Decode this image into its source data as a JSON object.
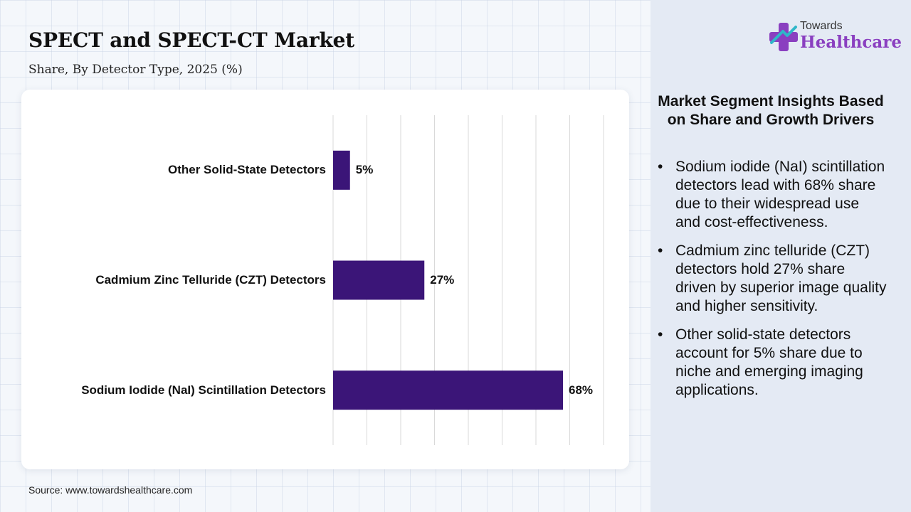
{
  "header": {
    "title": "SPECT and SPECT-CT Market",
    "subtitle": "Share, By Detector Type, 2025 (%)"
  },
  "logo": {
    "line1": "Towards",
    "line2": "Healthcare",
    "icon": "cross-plus-icon"
  },
  "chart_data": {
    "type": "bar",
    "orientation": "horizontal",
    "categories": [
      "Other Solid-State Detectors",
      "Cadmium Zinc Telluride (CZT) Detectors",
      "Sodium Iodide (NaI) Scintillation Detectors"
    ],
    "values": [
      5,
      27,
      68
    ],
    "value_labels": [
      "5%",
      "27%",
      "68%"
    ],
    "xlim": [
      0,
      80
    ],
    "grid": true,
    "bar_color": "#3b1578"
  },
  "insights": {
    "title": "Market Segment Insights Based on Share and Growth Drivers",
    "items": [
      "Sodium iodide (NaI) scintillation detectors lead with 68% share due to their widespread use and cost-effectiveness.",
      "Cadmium zinc telluride (CZT) detectors hold 27% share driven by superior image quality and higher sensitivity.",
      "Other solid-state detectors account for 5% share due to niche and emerging imaging applications."
    ]
  },
  "source": "Source: www.towardshealthcare.com",
  "colors": {
    "bar": "#3b1578",
    "logo_purple": "#8a3fc0",
    "logo_teal": "#2fb7c9"
  }
}
